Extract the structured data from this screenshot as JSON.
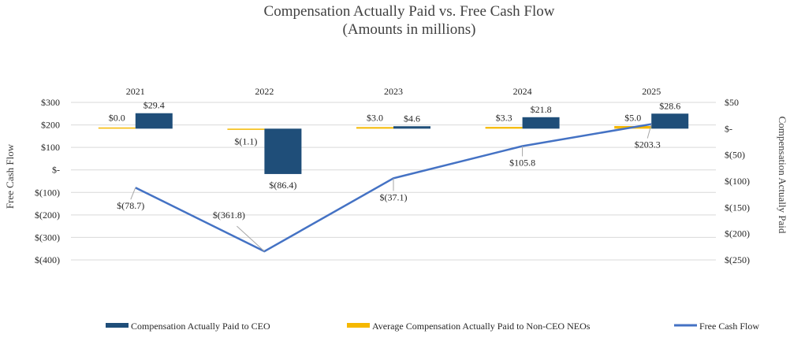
{
  "chart_data": {
    "type": "bar",
    "title": "Compensation Actually Paid vs. Free Cash Flow",
    "subtitle": "(Amounts in millions)",
    "categories": [
      "2021",
      "2022",
      "2023",
      "2024",
      "2025"
    ],
    "left_axis": {
      "label": "Free Cash Flow",
      "ylim": [
        -400,
        300
      ],
      "ticks": [
        300,
        200,
        100,
        0,
        -100,
        -200,
        -300,
        -400
      ],
      "tick_labels": [
        "$300",
        "$200",
        "$100",
        "$-",
        "$(100)",
        "$(200)",
        "$(300)",
        "$(400)"
      ]
    },
    "right_axis": {
      "label": "Compensation Actually Paid",
      "ylim": [
        -250,
        50
      ],
      "ticks": [
        50,
        0,
        -50,
        -100,
        -150,
        -200,
        -250
      ],
      "tick_labels": [
        "$50",
        "$-",
        "$(50)",
        "$(100)",
        "$(150)",
        "$(200)",
        "$(250)"
      ]
    },
    "series": [
      {
        "name": "Compensation Actually Paid to CEO",
        "kind": "bar",
        "axis": "right",
        "color": "#1f4e79",
        "values": [
          29.4,
          -86.4,
          4.6,
          21.8,
          28.6
        ],
        "labels": [
          "$29.4",
          "$(86.4)",
          "$4.6",
          "$21.8",
          "$28.6"
        ]
      },
      {
        "name": "Average Compensation Actually Paid to Non-CEO NEOs",
        "kind": "bar",
        "axis": "right",
        "color": "#f5b800",
        "values": [
          0.0,
          -1.1,
          3.0,
          3.3,
          5.0
        ],
        "labels": [
          "$0.0",
          "$(1.1)",
          "$3.0",
          "$3.3",
          "$5.0"
        ]
      },
      {
        "name": "Free Cash Flow",
        "kind": "line",
        "axis": "left",
        "color": "#4472c4",
        "values": [
          -78.7,
          -361.8,
          -37.1,
          105.8,
          203.3
        ],
        "labels": [
          "$(78.7)",
          "$(361.8)",
          "$(37.1)",
          "$105.8",
          "$203.3"
        ]
      }
    ],
    "grid": true,
    "legend_position": "bottom"
  }
}
